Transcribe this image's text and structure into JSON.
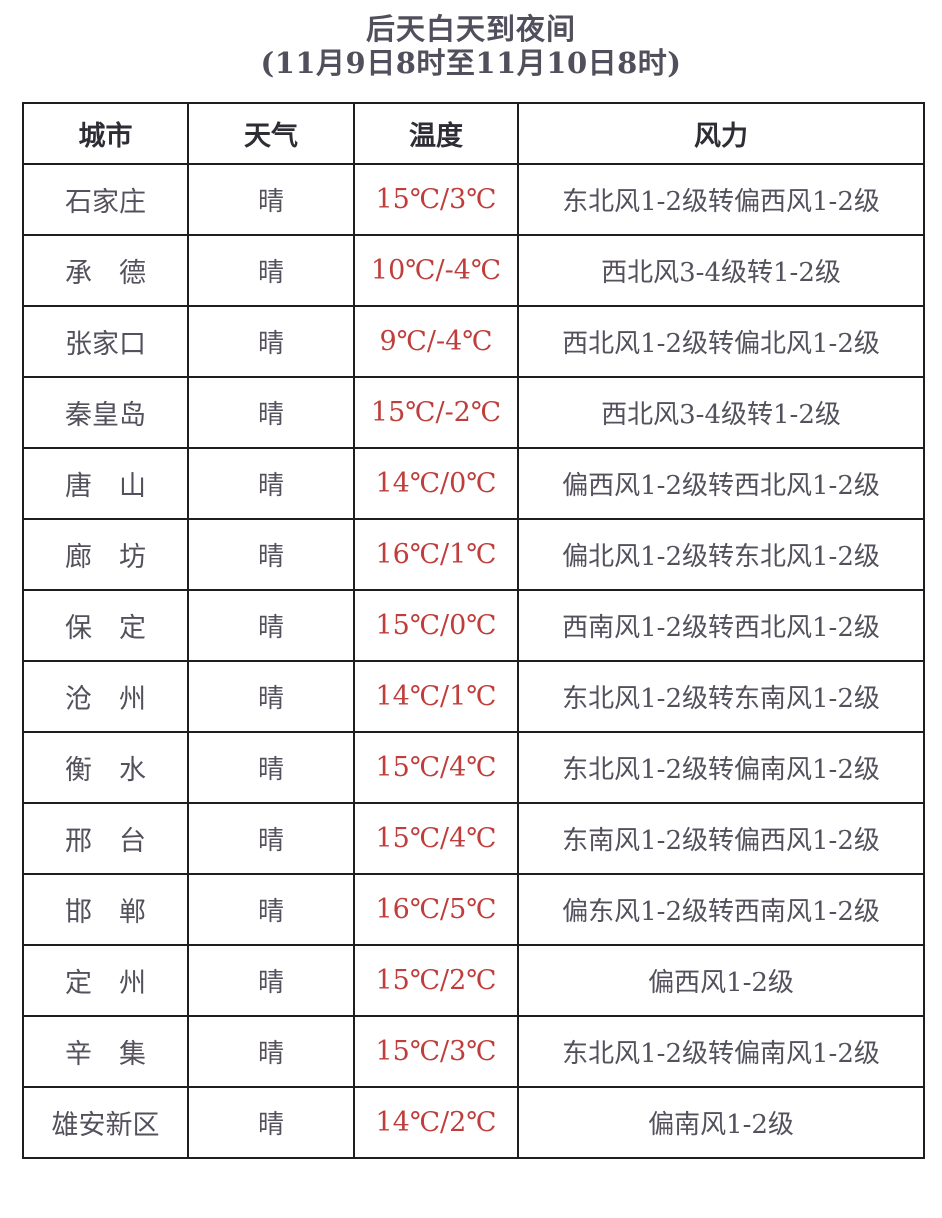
{
  "page": {
    "title_line1": "后天白天到夜间",
    "title_line2": "(11月9日8时至11月10日8时)"
  },
  "colors": {
    "temperature_text": "#bf3e3c",
    "body_text": "#54515d",
    "header_text": "#2e2d35",
    "table_border": "#1e1e1e",
    "background": "#ffffff"
  },
  "chart_data": {
    "type": "table",
    "title": "后天白天到夜间",
    "subtitle": "(11月9日8时至11月10日8时)",
    "columns": [
      "城市",
      "天气",
      "温度",
      "风力"
    ],
    "rows": [
      [
        "石家庄",
        "晴",
        "15℃/3℃",
        "东北风1-2级转偏西风1-2级"
      ],
      [
        "承　德",
        "晴",
        "10℃/-4℃",
        "西北风3-4级转1-2级"
      ],
      [
        "张家口",
        "晴",
        "9℃/-4℃",
        "西北风1-2级转偏北风1-2级"
      ],
      [
        "秦皇岛",
        "晴",
        "15℃/-2℃",
        "西北风3-4级转1-2级"
      ],
      [
        "唐　山",
        "晴",
        "14℃/0℃",
        "偏西风1-2级转西北风1-2级"
      ],
      [
        "廊　坊",
        "晴",
        "16℃/1℃",
        "偏北风1-2级转东北风1-2级"
      ],
      [
        "保　定",
        "晴",
        "15℃/0℃",
        "西南风1-2级转西北风1-2级"
      ],
      [
        "沧　州",
        "晴",
        "14℃/1℃",
        "东北风1-2级转东南风1-2级"
      ],
      [
        "衡　水",
        "晴",
        "15℃/4℃",
        "东北风1-2级转偏南风1-2级"
      ],
      [
        "邢　台",
        "晴",
        "15℃/4℃",
        "东南风1-2级转偏西风1-2级"
      ],
      [
        "邯　郸",
        "晴",
        "16℃/5℃",
        "偏东风1-2级转西南风1-2级"
      ],
      [
        "定　州",
        "晴",
        "15℃/2℃",
        "偏西风1-2级"
      ],
      [
        "辛　集",
        "晴",
        "15℃/3℃",
        "东北风1-2级转偏南风1-2级"
      ],
      [
        "雄安新区",
        "晴",
        "14℃/2℃",
        "偏南风1-2级"
      ]
    ]
  }
}
